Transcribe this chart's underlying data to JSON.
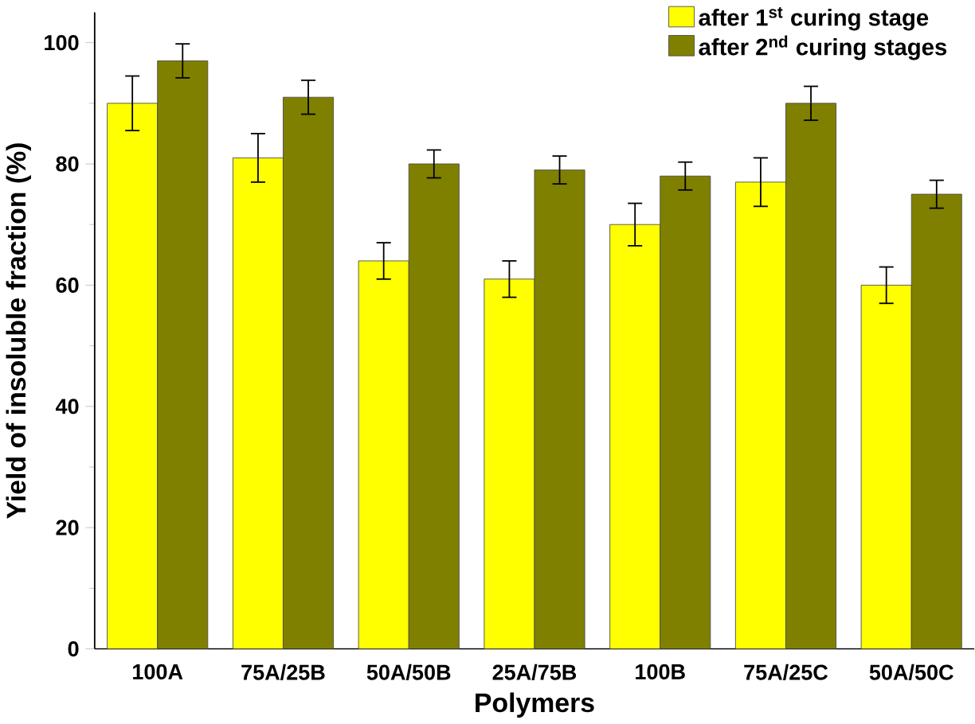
{
  "chart_data": {
    "type": "bar",
    "xlabel": "Polymers",
    "ylabel": "Yield of insoluble fraction (%)",
    "categories": [
      "100A",
      "75A/25B",
      "50A/50B",
      "25A/75B",
      "100B",
      "75A/25C",
      "50A/50C"
    ],
    "series": [
      {
        "name": "after 1$^{st}$ curing stage",
        "color": "#ffff00",
        "values": [
          90,
          81,
          64,
          61,
          70,
          77,
          60
        ],
        "errors": [
          4.5,
          4,
          3,
          3,
          3.5,
          4,
          3
        ]
      },
      {
        "name": "after 2$^{nd}$ curing stages",
        "color": "#808000",
        "values": [
          97,
          91,
          80,
          79,
          78,
          90,
          75
        ],
        "errors": [
          2.8,
          2.8,
          2.3,
          2.3,
          2.3,
          2.8,
          2.3
        ]
      }
    ],
    "ylim": [
      0,
      105
    ],
    "yticks": [
      0,
      20,
      40,
      60,
      80,
      100
    ],
    "grid": false,
    "legend": "top right"
  }
}
